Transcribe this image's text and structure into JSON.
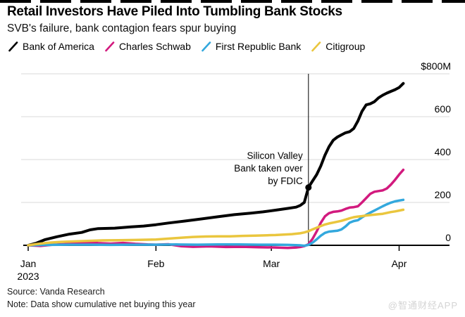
{
  "header": {
    "title": "Retail Investors Have Piled Into Tumbling Bank Stocks",
    "subtitle": "SVB's failure, bank contagion fears spur buying"
  },
  "legend": {
    "items": [
      {
        "label": "Bank of America",
        "color": "#000000"
      },
      {
        "label": "Charles Schwab",
        "color": "#d21a7e"
      },
      {
        "label": "First Republic Bank",
        "color": "#33a8dd"
      },
      {
        "label": "Citigroup",
        "color": "#eac63e"
      }
    ]
  },
  "chart_data": {
    "type": "line",
    "title": "Retail Investors Have Piled Into Tumbling Bank Stocks",
    "subtitle": "SVB's failure, bank contagion fears spur buying",
    "unit": "$M",
    "grid": "horizontal",
    "legend_position": "top",
    "x_axis": {
      "ticks": [
        {
          "label": "Jan",
          "day": 0
        },
        {
          "label": "Feb",
          "day": 31
        },
        {
          "label": "Mar",
          "day": 59
        },
        {
          "label": "Apr",
          "day": 90
        }
      ],
      "year_label": "2023",
      "range_days": [
        0,
        91
      ]
    },
    "y_axis": {
      "ylim": [
        0,
        800
      ],
      "ticks": [
        {
          "value": 800,
          "label": "$800M"
        },
        {
          "value": 600,
          "label": "600"
        },
        {
          "value": 400,
          "label": "400"
        },
        {
          "value": 200,
          "label": "200"
        },
        {
          "value": 0,
          "label": "0"
        }
      ]
    },
    "event_line": {
      "day": 68,
      "label_lines": [
        "Silicon Valley",
        "Bank taken over",
        "by FDIC"
      ]
    },
    "event_marker": {
      "series": "Bank of America",
      "day": 68,
      "value": 270
    },
    "series": [
      {
        "name": "Bank of America",
        "color": "#000000",
        "width": 4,
        "points": [
          [
            0,
            0
          ],
          [
            2,
            10
          ],
          [
            4,
            26
          ],
          [
            7,
            40
          ],
          [
            10,
            52
          ],
          [
            13,
            60
          ],
          [
            15,
            72
          ],
          [
            17,
            78
          ],
          [
            21,
            80
          ],
          [
            25,
            86
          ],
          [
            28,
            90
          ],
          [
            31,
            96
          ],
          [
            34,
            104
          ],
          [
            38,
            113
          ],
          [
            42,
            123
          ],
          [
            46,
            133
          ],
          [
            50,
            143
          ],
          [
            54,
            150
          ],
          [
            57,
            156
          ],
          [
            60,
            164
          ],
          [
            63,
            172
          ],
          [
            65,
            178
          ],
          [
            66,
            186
          ],
          [
            67,
            200
          ],
          [
            68,
            270
          ],
          [
            69,
            300
          ],
          [
            70,
            330
          ],
          [
            71,
            370
          ],
          [
            72,
            420
          ],
          [
            73,
            460
          ],
          [
            74,
            490
          ],
          [
            75,
            505
          ],
          [
            76,
            515
          ],
          [
            77,
            525
          ],
          [
            78,
            530
          ],
          [
            79,
            545
          ],
          [
            80,
            580
          ],
          [
            81,
            625
          ],
          [
            82,
            655
          ],
          [
            83,
            660
          ],
          [
            84,
            670
          ],
          [
            85,
            688
          ],
          [
            86,
            700
          ],
          [
            87,
            710
          ],
          [
            88,
            718
          ],
          [
            89,
            726
          ],
          [
            90,
            736
          ],
          [
            91,
            755
          ]
        ]
      },
      {
        "name": "Charles Schwab",
        "color": "#d21a7e",
        "width": 3.5,
        "points": [
          [
            0,
            0
          ],
          [
            3,
            -3
          ],
          [
            6,
            3
          ],
          [
            9,
            6
          ],
          [
            12,
            9
          ],
          [
            15,
            13
          ],
          [
            17,
            10
          ],
          [
            20,
            8
          ],
          [
            23,
            11
          ],
          [
            26,
            7
          ],
          [
            29,
            4
          ],
          [
            31,
            3
          ],
          [
            34,
            5
          ],
          [
            37,
            -4
          ],
          [
            40,
            -7
          ],
          [
            44,
            -5
          ],
          [
            48,
            -8
          ],
          [
            52,
            -7
          ],
          [
            56,
            -9
          ],
          [
            60,
            -10
          ],
          [
            63,
            -12
          ],
          [
            65,
            -10
          ],
          [
            66,
            -8
          ],
          [
            67,
            -4
          ],
          [
            68,
            5
          ],
          [
            69,
            30
          ],
          [
            70,
            65
          ],
          [
            71,
            105
          ],
          [
            72,
            135
          ],
          [
            73,
            150
          ],
          [
            74,
            156
          ],
          [
            75,
            158
          ],
          [
            76,
            162
          ],
          [
            77,
            170
          ],
          [
            78,
            176
          ],
          [
            79,
            178
          ],
          [
            80,
            182
          ],
          [
            81,
            200
          ],
          [
            82,
            220
          ],
          [
            83,
            240
          ],
          [
            84,
            250
          ],
          [
            85,
            253
          ],
          [
            86,
            256
          ],
          [
            87,
            265
          ],
          [
            88,
            283
          ],
          [
            89,
            305
          ],
          [
            90,
            330
          ],
          [
            91,
            352
          ]
        ]
      },
      {
        "name": "First Republic Bank",
        "color": "#33a8dd",
        "width": 3.5,
        "points": [
          [
            0,
            0
          ],
          [
            5,
            2
          ],
          [
            10,
            3
          ],
          [
            15,
            3
          ],
          [
            20,
            2
          ],
          [
            25,
            3
          ],
          [
            31,
            3
          ],
          [
            36,
            4
          ],
          [
            41,
            3
          ],
          [
            46,
            4
          ],
          [
            51,
            4
          ],
          [
            56,
            3
          ],
          [
            60,
            3
          ],
          [
            63,
            2
          ],
          [
            65,
            1
          ],
          [
            66,
            0
          ],
          [
            67,
            -2
          ],
          [
            68,
            2
          ],
          [
            69,
            12
          ],
          [
            70,
            28
          ],
          [
            71,
            45
          ],
          [
            72,
            58
          ],
          [
            73,
            64
          ],
          [
            74,
            66
          ],
          [
            75,
            68
          ],
          [
            76,
            74
          ],
          [
            77,
            88
          ],
          [
            78,
            106
          ],
          [
            79,
            113
          ],
          [
            80,
            117
          ],
          [
            81,
            130
          ],
          [
            82,
            142
          ],
          [
            83,
            152
          ],
          [
            84,
            162
          ],
          [
            85,
            172
          ],
          [
            86,
            182
          ],
          [
            87,
            191
          ],
          [
            88,
            199
          ],
          [
            89,
            205
          ],
          [
            90,
            209
          ],
          [
            91,
            212
          ]
        ]
      },
      {
        "name": "Citigroup",
        "color": "#eac63e",
        "width": 3.5,
        "points": [
          [
            0,
            0
          ],
          [
            2,
            6
          ],
          [
            5,
            12
          ],
          [
            8,
            16
          ],
          [
            12,
            19
          ],
          [
            15,
            21
          ],
          [
            18,
            23
          ],
          [
            22,
            24
          ],
          [
            26,
            25
          ],
          [
            31,
            27
          ],
          [
            34,
            31
          ],
          [
            37,
            35
          ],
          [
            40,
            39
          ],
          [
            43,
            41
          ],
          [
            46,
            42
          ],
          [
            49,
            42
          ],
          [
            52,
            44
          ],
          [
            55,
            45
          ],
          [
            58,
            47
          ],
          [
            60,
            48
          ],
          [
            62,
            50
          ],
          [
            64,
            52
          ],
          [
            66,
            56
          ],
          [
            67,
            60
          ],
          [
            68,
            66
          ],
          [
            69,
            74
          ],
          [
            70,
            82
          ],
          [
            71,
            90
          ],
          [
            72,
            97
          ],
          [
            73,
            102
          ],
          [
            74,
            106
          ],
          [
            75,
            110
          ],
          [
            76,
            114
          ],
          [
            77,
            120
          ],
          [
            78,
            126
          ],
          [
            79,
            131
          ],
          [
            80,
            134
          ],
          [
            81,
            136
          ],
          [
            82,
            139
          ],
          [
            83,
            141
          ],
          [
            84,
            143
          ],
          [
            85,
            145
          ],
          [
            86,
            147
          ],
          [
            87,
            151
          ],
          [
            88,
            155
          ],
          [
            89,
            158
          ],
          [
            90,
            162
          ],
          [
            91,
            166
          ]
        ]
      }
    ]
  },
  "footer": {
    "source": "Source: Vanda Research",
    "note": "Note: Data show cumulative net buying this year",
    "watermark": "@智通财经APP"
  },
  "colors": {
    "gridline": "#d9d9d9",
    "axis": "#000000",
    "text": "#000000",
    "watermark": "#d4d4d4"
  }
}
